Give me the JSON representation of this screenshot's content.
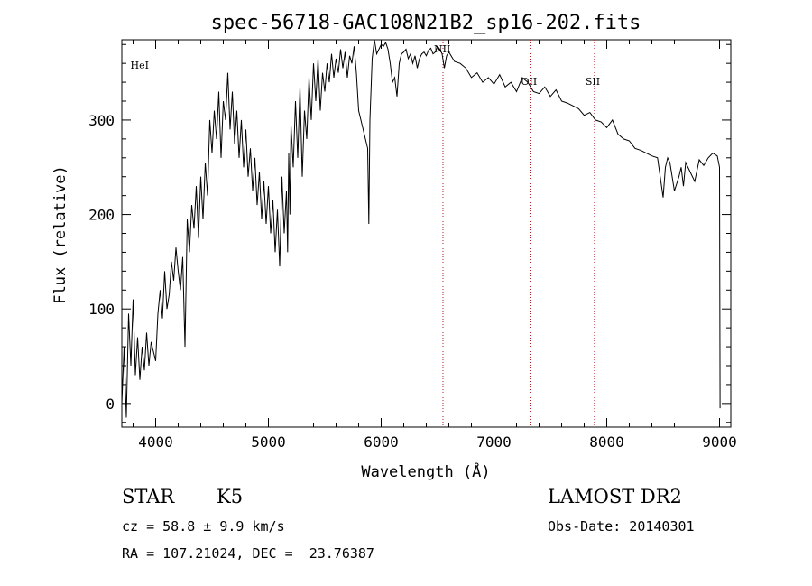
{
  "chart_data": {
    "type": "line",
    "title": "spec-56718-GAC108N21B2_sp16-202.fits",
    "xlabel": "Wavelength (Å)",
    "ylabel": "Flux (relative)",
    "xlim": [
      3700,
      9100
    ],
    "ylim": [
      -25,
      385
    ],
    "xticks": [
      "4000",
      "5000",
      "6000",
      "7000",
      "8000",
      "9000"
    ],
    "yticks": [
      "0",
      "100",
      "200",
      "300"
    ],
    "grid": false,
    "series": [
      {
        "x": [
          3700,
          3720,
          3740,
          3760,
          3780,
          3800,
          3820,
          3840,
          3860,
          3880,
          3900,
          3920,
          3940,
          3960,
          3980,
          4000,
          4020,
          4040,
          4060,
          4080,
          4100,
          4120,
          4140,
          4160,
          4180,
          4200,
          4220,
          4240,
          4260,
          4280,
          4300,
          4320,
          4340,
          4360,
          4380,
          4400,
          4420,
          4440,
          4460,
          4480,
          4500,
          4520,
          4540,
          4560,
          4580,
          4600,
          4620,
          4640,
          4660,
          4680,
          4700,
          4720,
          4740,
          4760,
          4780,
          4800,
          4820,
          4840,
          4860,
          4880,
          4900,
          4920,
          4940,
          4960,
          4980,
          5000,
          5020,
          5040,
          5060,
          5080,
          5100,
          5120,
          5140,
          5160,
          5170,
          5180,
          5190,
          5200,
          5220,
          5240,
          5260,
          5280,
          5300,
          5320,
          5340,
          5360,
          5380,
          5400,
          5420,
          5440,
          5460,
          5480,
          5500,
          5520,
          5540,
          5560,
          5580,
          5600,
          5620,
          5640,
          5660,
          5680,
          5700,
          5720,
          5740,
          5760,
          5780,
          5800,
          5820,
          5840,
          5860,
          5880,
          5890,
          5900,
          5920,
          5940,
          5960,
          5980,
          6000,
          6020,
          6040,
          6060,
          6080,
          6100,
          6120,
          6140,
          6160,
          6180,
          6200,
          6220,
          6240,
          6260,
          6280,
          6300,
          6320,
          6340,
          6360,
          6380,
          6400,
          6420,
          6440,
          6460,
          6480,
          6500,
          6520,
          6540,
          6560,
          6580,
          6600,
          6650,
          6700,
          6750,
          6800,
          6850,
          6900,
          6950,
          7000,
          7050,
          7100,
          7150,
          7200,
          7250,
          7300,
          7350,
          7400,
          7450,
          7500,
          7550,
          7600,
          7650,
          7700,
          7750,
          7800,
          7850,
          7900,
          7950,
          8000,
          8050,
          8100,
          8150,
          8200,
          8250,
          8300,
          8350,
          8400,
          8450,
          8500,
          8520,
          8540,
          8560,
          8600,
          8640,
          8660,
          8680,
          8700,
          8740,
          8780,
          8820,
          8860,
          8900,
          8940,
          8980,
          9000,
          9005
        ],
        "y": [
          0,
          60,
          -15,
          95,
          40,
          110,
          30,
          70,
          25,
          60,
          35,
          75,
          40,
          65,
          55,
          45,
          95,
          120,
          90,
          140,
          100,
          115,
          150,
          130,
          165,
          140,
          120,
          155,
          60,
          195,
          160,
          210,
          185,
          230,
          175,
          240,
          195,
          255,
          220,
          300,
          265,
          310,
          280,
          330,
          260,
          320,
          300,
          350,
          290,
          330,
          275,
          310,
          260,
          300,
          250,
          290,
          240,
          270,
          225,
          260,
          210,
          245,
          195,
          235,
          190,
          230,
          180,
          215,
          160,
          205,
          145,
          240,
          180,
          225,
          160,
          265,
          200,
          295,
          250,
          320,
          260,
          335,
          240,
          310,
          280,
          345,
          300,
          360,
          320,
          365,
          310,
          350,
          330,
          360,
          340,
          370,
          345,
          365,
          350,
          375,
          355,
          372,
          345,
          368,
          360,
          378,
          350,
          310,
          300,
          290,
          280,
          270,
          190,
          300,
          365,
          385,
          370,
          375,
          380,
          378,
          382,
          375,
          360,
          340,
          345,
          325,
          360,
          370,
          372,
          375,
          365,
          370,
          360,
          368,
          355,
          365,
          370,
          372,
          368,
          374,
          376,
          370,
          372,
          378,
          375,
          370,
          355,
          368,
          372,
          362,
          360,
          355,
          345,
          350,
          340,
          345,
          338,
          348,
          335,
          340,
          330,
          345,
          340,
          330,
          328,
          335,
          325,
          332,
          320,
          318,
          315,
          312,
          305,
          308,
          300,
          298,
          292,
          300,
          285,
          280,
          278,
          270,
          268,
          265,
          262,
          260,
          218,
          250,
          260,
          255,
          225,
          240,
          250,
          230,
          255,
          245,
          235,
          258,
          252,
          260,
          265,
          262,
          250,
          -5
        ]
      }
    ],
    "line_labels": [
      {
        "name": "HeI",
        "x": 3888
      },
      {
        "name": "NII",
        "x": 6548
      },
      {
        "name": "OII",
        "x": 7320
      },
      {
        "name": "SII",
        "x": 7891
      }
    ]
  },
  "info": {
    "object_class": "STAR",
    "subclass": "K5",
    "cz": "cz = 58.8 ± 9.9 km/s",
    "coords": "RA = 107.21024, DEC =  23.76387",
    "survey": "LAMOST DR2",
    "obs_date": "Obs-Date: 20140301"
  },
  "colors": {
    "line": "#000000",
    "marker_line": "#b22222"
  }
}
